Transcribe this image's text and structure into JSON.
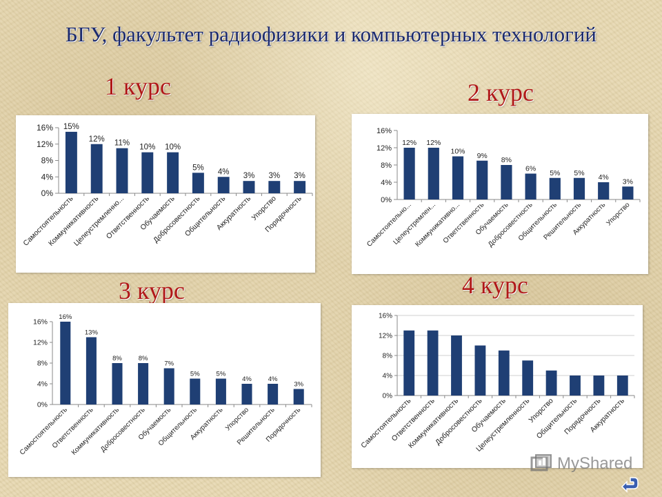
{
  "title": "БГУ, факультет радиофизики и компьютерных технологий",
  "watermark": "MyShared",
  "colors": {
    "bar": "#1f3f74",
    "title": "#1b2a6e",
    "course_label": "#b01818"
  },
  "icons": {
    "watermark": "myshared-logo-icon",
    "nav": "return-arrow-icon"
  },
  "chart_data": [
    {
      "type": "bar",
      "title": "1 курс",
      "categories": [
        "Самостоятельность",
        "Коммуникативность",
        "Целеустремленно...",
        "Ответственность",
        "Обучаемость",
        "Добросовестность",
        "Общительность",
        "Аккуратность",
        "Упорство",
        "Порядочность"
      ],
      "values": [
        15,
        12,
        11,
        10,
        10,
        5,
        4,
        3,
        3,
        3
      ],
      "data_labels": [
        "15%",
        "12%",
        "11%",
        "10%",
        "10%",
        "5%",
        "4%",
        "3%",
        "3%",
        "3%"
      ],
      "ylim": [
        0,
        16
      ],
      "yticks": [
        0,
        4,
        8,
        12,
        16
      ],
      "ytick_labels": [
        "0%",
        "4%",
        "8%",
        "12%",
        "16%"
      ],
      "grid": false,
      "legend": "none"
    },
    {
      "type": "bar",
      "title": "2 курс",
      "categories": [
        "Самостоятельно...",
        "Целеустремлен...",
        "Коммуникативно...",
        "Ответственность",
        "Обучаемость",
        "Добросовестность",
        "Общительность",
        "Решительность",
        "Аккуратность",
        "Упорство"
      ],
      "values": [
        12,
        12,
        10,
        9,
        8,
        6,
        5,
        5,
        4,
        3
      ],
      "data_labels": [
        "12%",
        "12%",
        "10%",
        "9%",
        "8%",
        "6%",
        "5%",
        "5%",
        "4%",
        "3%"
      ],
      "ylim": [
        0,
        16
      ],
      "yticks": [
        0,
        4,
        8,
        12,
        16
      ],
      "ytick_labels": [
        "0%",
        "4%",
        "8%",
        "12%",
        "16%"
      ],
      "grid": false,
      "legend": "none"
    },
    {
      "type": "bar",
      "title": "3 курс",
      "categories": [
        "Самостоятельность",
        "Ответственность",
        "Коммуникативность",
        "Добросовестность",
        "Обучаемость",
        "Общительность",
        "Аккуратность",
        "Упорство",
        "Решительность",
        "Порядочность"
      ],
      "values": [
        16,
        13,
        8,
        8,
        7,
        5,
        5,
        4,
        4,
        3
      ],
      "data_labels": [
        "16%",
        "13%",
        "8%",
        "8%",
        "7%",
        "5%",
        "5%",
        "4%",
        "4%",
        "3%"
      ],
      "ylim": [
        0,
        16
      ],
      "yticks": [
        0,
        4,
        8,
        12,
        16
      ],
      "ytick_labels": [
        "0%",
        "4%",
        "8%",
        "12%",
        "16%"
      ],
      "grid": false,
      "legend": "none"
    },
    {
      "type": "bar",
      "title": "4 курс",
      "categories": [
        "Самостоятельность",
        "Ответственность",
        "Коммуникативность",
        "Добросовестность",
        "Обучаемость",
        "Целеустремленность",
        "Упорство",
        "Общительность",
        "Порядочность",
        "Аккуратность"
      ],
      "values": [
        13,
        13,
        12,
        10,
        9,
        7,
        5,
        4,
        4,
        4
      ],
      "data_labels": [],
      "ylim": [
        0,
        16
      ],
      "yticks": [
        0,
        4,
        8,
        12,
        16
      ],
      "ytick_labels": [
        "0%",
        "4%",
        "8%",
        "12%",
        "16%"
      ],
      "grid": true,
      "legend": "none"
    }
  ]
}
